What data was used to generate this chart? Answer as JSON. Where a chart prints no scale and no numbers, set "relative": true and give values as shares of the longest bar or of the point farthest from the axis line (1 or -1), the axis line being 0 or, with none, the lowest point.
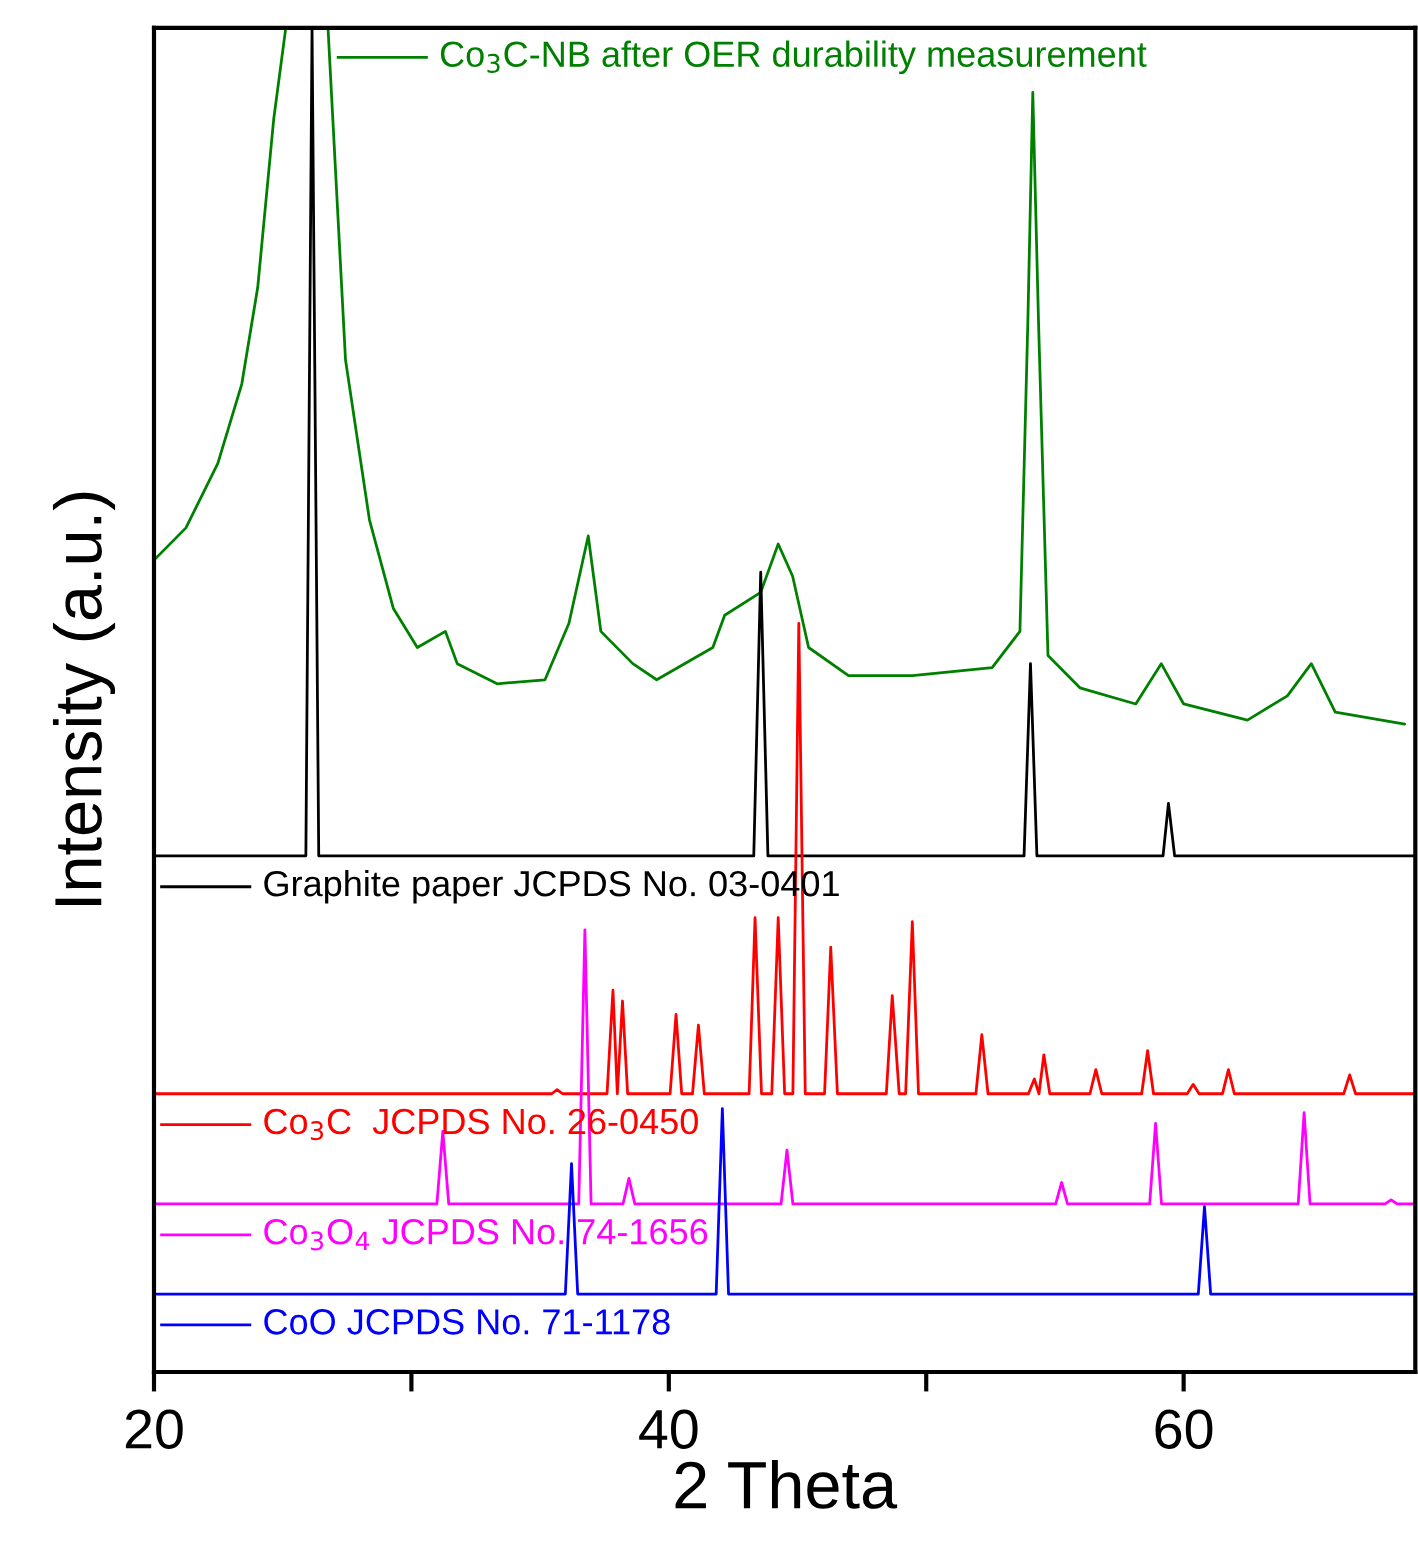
{
  "chart_data": {
    "type": "line",
    "relative": true,
    "xlabel": "2 Theta",
    "ylabel": "Intensity (a.u.)",
    "xlim": [
      20,
      69
    ],
    "xticks": [
      20,
      {
        "value": 30,
        "label": null
      },
      40,
      {
        "value": 50,
        "label": null
      },
      60
    ],
    "grid": false,
    "legend": "left",
    "marker": "none",
    "line_style": "solid",
    "series": [
      {
        "name": "Co$_{3}$C-NB after OER durability measurement",
        "color": "#008000",
        "x": [
          20.0,
          21.24,
          22.48,
          23.41,
          24.03,
          24.65,
          25.12,
          26.76,
          27.44,
          28.37,
          29.3,
          30.23,
          31.32,
          31.78,
          33.33,
          35.19,
          36.12,
          36.87,
          37.36,
          38.6,
          39.53,
          41.71,
          42.17,
          43.57,
          44.25,
          44.81,
          45.43,
          46.98,
          49.46,
          52.56,
          53.64,
          53.95,
          54.14,
          54.36,
          54.73,
          55.97,
          58.14,
          59.13,
          60.0,
          62.48,
          64.03,
          64.96,
          65.89,
          68.59
        ],
        "values": [
          0.604,
          0.628,
          0.676,
          0.735,
          0.807,
          0.932,
          1.0,
          1.0,
          0.753,
          0.634,
          0.568,
          0.539,
          0.551,
          0.527,
          0.512,
          0.515,
          0.557,
          0.622,
          0.551,
          0.527,
          0.515,
          0.539,
          0.563,
          0.58,
          0.616,
          0.592,
          0.539,
          0.518,
          0.518,
          0.524,
          0.551,
          0.783,
          0.952,
          0.783,
          0.533,
          0.509,
          0.497,
          0.527,
          0.497,
          0.485,
          0.503,
          0.527,
          0.491,
          0.482
        ]
      },
      {
        "name": "Graphite paper JCPDS No. 03-0401",
        "color": "#000000",
        "x": [
          20,
          25.9,
          26.14,
          26.4,
          43.3,
          43.57,
          43.85,
          53.8,
          54.05,
          54.3,
          59.2,
          59.41,
          59.65,
          69
        ],
        "values": [
          0.384,
          0.384,
          1.0,
          0.384,
          0.384,
          0.595,
          0.384,
          0.384,
          0.527,
          0.384,
          0.384,
          0.423,
          0.384,
          0.384
        ]
      },
      {
        "name": "Co$_{3}$C  JCPDS No. 26-0450",
        "color": "#ff0000",
        "x": [
          20,
          35.45,
          35.66,
          35.87,
          37.6,
          37.83,
          38.0,
          38.2,
          38.4,
          40.05,
          40.28,
          40.5,
          40.92,
          41.15,
          41.38,
          43.12,
          43.35,
          43.6,
          44.0,
          44.25,
          44.5,
          44.82,
          45.05,
          45.3,
          46.05,
          46.29,
          46.55,
          48.45,
          48.68,
          48.95,
          49.2,
          49.46,
          49.7,
          51.93,
          52.16,
          52.4,
          53.97,
          54.2,
          54.38,
          54.57,
          54.8,
          56.36,
          56.59,
          56.82,
          58.37,
          58.6,
          58.83,
          60.14,
          60.37,
          60.6,
          61.51,
          61.74,
          61.97,
          66.22,
          66.45,
          66.68,
          69
        ],
        "values": [
          0.207,
          0.207,
          0.21,
          0.207,
          0.207,
          0.284,
          0.207,
          0.276,
          0.207,
          0.207,
          0.266,
          0.207,
          0.207,
          0.258,
          0.207,
          0.207,
          0.338,
          0.207,
          0.207,
          0.338,
          0.207,
          0.207,
          0.557,
          0.207,
          0.207,
          0.316,
          0.207,
          0.207,
          0.28,
          0.207,
          0.207,
          0.335,
          0.207,
          0.207,
          0.251,
          0.207,
          0.207,
          0.218,
          0.207,
          0.236,
          0.207,
          0.207,
          0.225,
          0.207,
          0.207,
          0.239,
          0.207,
          0.207,
          0.214,
          0.207,
          0.207,
          0.225,
          0.207,
          0.207,
          0.221,
          0.207,
          0.207
        ]
      },
      {
        "name": "Co$_{3}$O$_{4}$ JCPDS No. 74-1656",
        "color": "#ff00ff",
        "x": [
          20,
          30.99,
          31.22,
          31.45,
          36.5,
          36.74,
          36.98,
          38.22,
          38.45,
          38.68,
          44.36,
          44.59,
          44.82,
          55.03,
          55.26,
          55.49,
          58.68,
          58.91,
          59.14,
          64.45,
          64.68,
          64.91,
          67.83,
          68.06,
          68.29,
          69
        ],
        "values": [
          0.125,
          0.125,
          0.179,
          0.125,
          0.125,
          0.329,
          0.125,
          0.125,
          0.144,
          0.125,
          0.125,
          0.165,
          0.125,
          0.125,
          0.141,
          0.125,
          0.125,
          0.185,
          0.125,
          0.125,
          0.193,
          0.125,
          0.125,
          0.128,
          0.125,
          0.125
        ]
      },
      {
        "name": "CoO JCPDS No. 71-1178",
        "color": "#0000ff",
        "x": [
          20,
          35.98,
          36.22,
          36.46,
          41.84,
          42.08,
          42.32,
          60.57,
          60.81,
          61.05,
          69
        ],
        "values": [
          0.058,
          0.058,
          0.155,
          0.058,
          0.058,
          0.196,
          0.058,
          0.058,
          0.123,
          0.058,
          0.058
        ]
      }
    ]
  }
}
